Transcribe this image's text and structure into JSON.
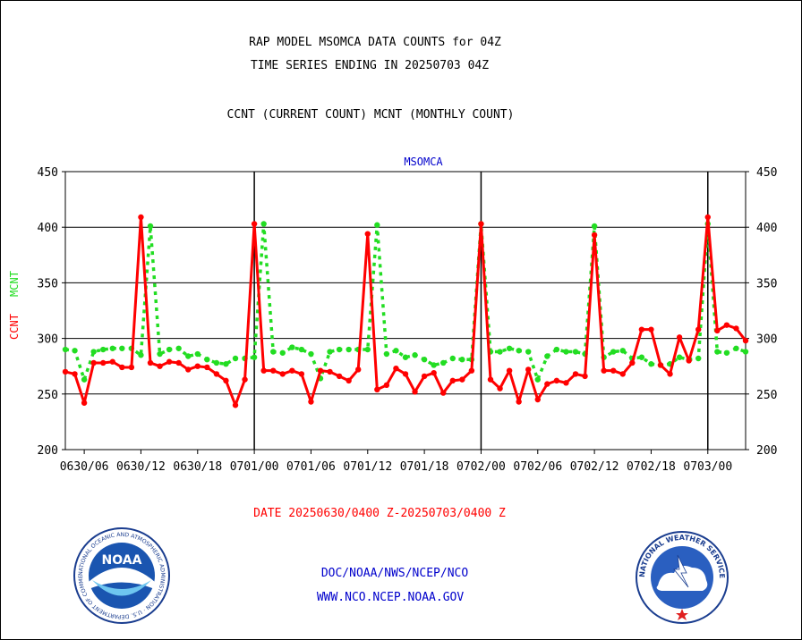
{
  "header": {
    "title_line1": "RAP MODEL MSOMCA DATA COUNTS for 04Z",
    "title_line2": "TIME SERIES ENDING IN 20250703 04Z",
    "subtitle": "CCNT (CURRENT COUNT) MCNT (MONTHLY COUNT)"
  },
  "footer": {
    "date_range": "DATE 20250630/0400 Z-20250703/0400 Z",
    "org_line": "DOC/NOAA/NWS/NCEP/NCO",
    "url_line": "WWW.NCO.NCEP.NOAA.GOV"
  },
  "logos": {
    "left": "noaa-logo",
    "right": "nws-logo",
    "left_text": "NOAA",
    "left_ring_text": "NATIONAL OCEANIC AND ATMOSPHERIC ADMINISTRATION · U.S. DEPARTMENT OF COMMERCE",
    "right_ring_text": "NATIONAL WEATHER SERVICE"
  },
  "colors": {
    "ccnt": "#ff0000",
    "mcnt": "#22dd22",
    "text_dark": "#000000",
    "text_blue": "#0000cc",
    "date_red": "#ff0000"
  },
  "chart_data": {
    "type": "line",
    "title": "MSOMCA",
    "ylabel_ccnt": "CCNT",
    "ylabel_mcnt": "MCNT",
    "ylim": [
      200,
      450
    ],
    "yticks": [
      200,
      250,
      300,
      350,
      400,
      450
    ],
    "grid": true,
    "x_ticks": [
      "0630/06",
      "0630/12",
      "0630/18",
      "0701/00",
      "0701/06",
      "0701/12",
      "0701/18",
      "0702/00",
      "0702/06",
      "0702/12",
      "0702/18",
      "0703/00"
    ],
    "x_tick_hours": [
      2,
      8,
      14,
      20,
      26,
      32,
      38,
      44,
      50,
      56,
      62,
      68
    ],
    "day_boundaries_hours": [
      20,
      44,
      68
    ],
    "x_range_hours": [
      0,
      72
    ],
    "series": [
      {
        "name": "CCNT",
        "values": [
          270,
          268,
          242,
          278,
          278,
          279,
          274,
          274,
          409,
          278,
          275,
          279,
          278,
          272,
          275,
          274,
          268,
          262,
          240,
          263,
          403,
          271,
          271,
          268,
          271,
          268,
          243,
          271,
          270,
          266,
          262,
          272,
          394,
          254,
          258,
          273,
          268,
          252,
          266,
          269,
          251,
          262,
          263,
          271,
          403,
          263,
          255,
          271,
          243,
          272,
          245,
          259,
          262,
          260,
          268,
          266,
          393,
          271,
          271,
          268,
          278,
          308,
          308,
          276,
          268,
          301,
          280,
          308,
          409,
          307,
          312,
          309,
          298
        ]
      },
      {
        "name": "MCNT",
        "values": [
          290,
          289,
          263,
          288,
          290,
          291,
          291,
          291,
          285,
          401,
          286,
          290,
          291,
          284,
          286,
          281,
          278,
          277,
          282,
          282,
          283,
          403,
          288,
          287,
          292,
          290,
          286,
          264,
          288,
          290,
          290,
          290,
          290,
          402,
          286,
          289,
          283,
          285,
          281,
          276,
          278,
          282,
          281,
          281,
          403,
          288,
          288,
          291,
          289,
          288,
          263,
          284,
          290,
          288,
          288,
          286,
          401,
          283,
          288,
          289,
          282,
          283,
          277,
          276,
          277,
          283,
          281,
          282,
          403,
          288,
          287,
          291,
          288
        ]
      }
    ]
  }
}
